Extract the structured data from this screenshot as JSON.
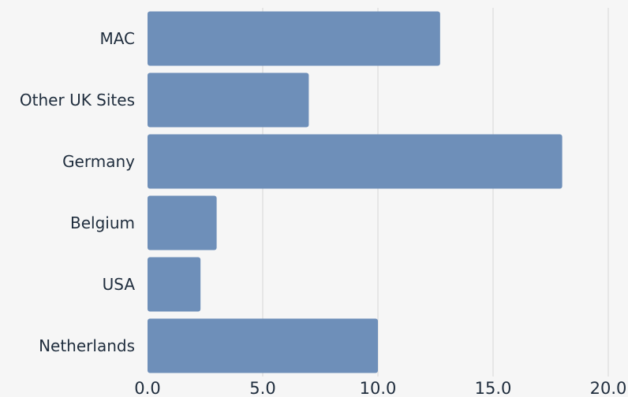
{
  "chart_data": {
    "type": "bar",
    "orientation": "horizontal",
    "categories": [
      "MAC",
      "Other UK Sites",
      "Germany",
      "Belgium",
      "USA",
      "Netherlands"
    ],
    "values": [
      12.7,
      7.0,
      18.0,
      3.0,
      2.3,
      10.0
    ],
    "xlim": [
      0,
      20
    ],
    "xticks": [
      "0.0",
      "5.0",
      "10.0",
      "15.0",
      "20.0"
    ],
    "title": "",
    "xlabel": "",
    "ylabel": "",
    "grid": "vertical",
    "legend": "none",
    "colors": {
      "bar": "#6e8fb9",
      "background": "#f6f6f6",
      "grid": "#d7d7d7",
      "text": "#1f2d3d"
    }
  }
}
